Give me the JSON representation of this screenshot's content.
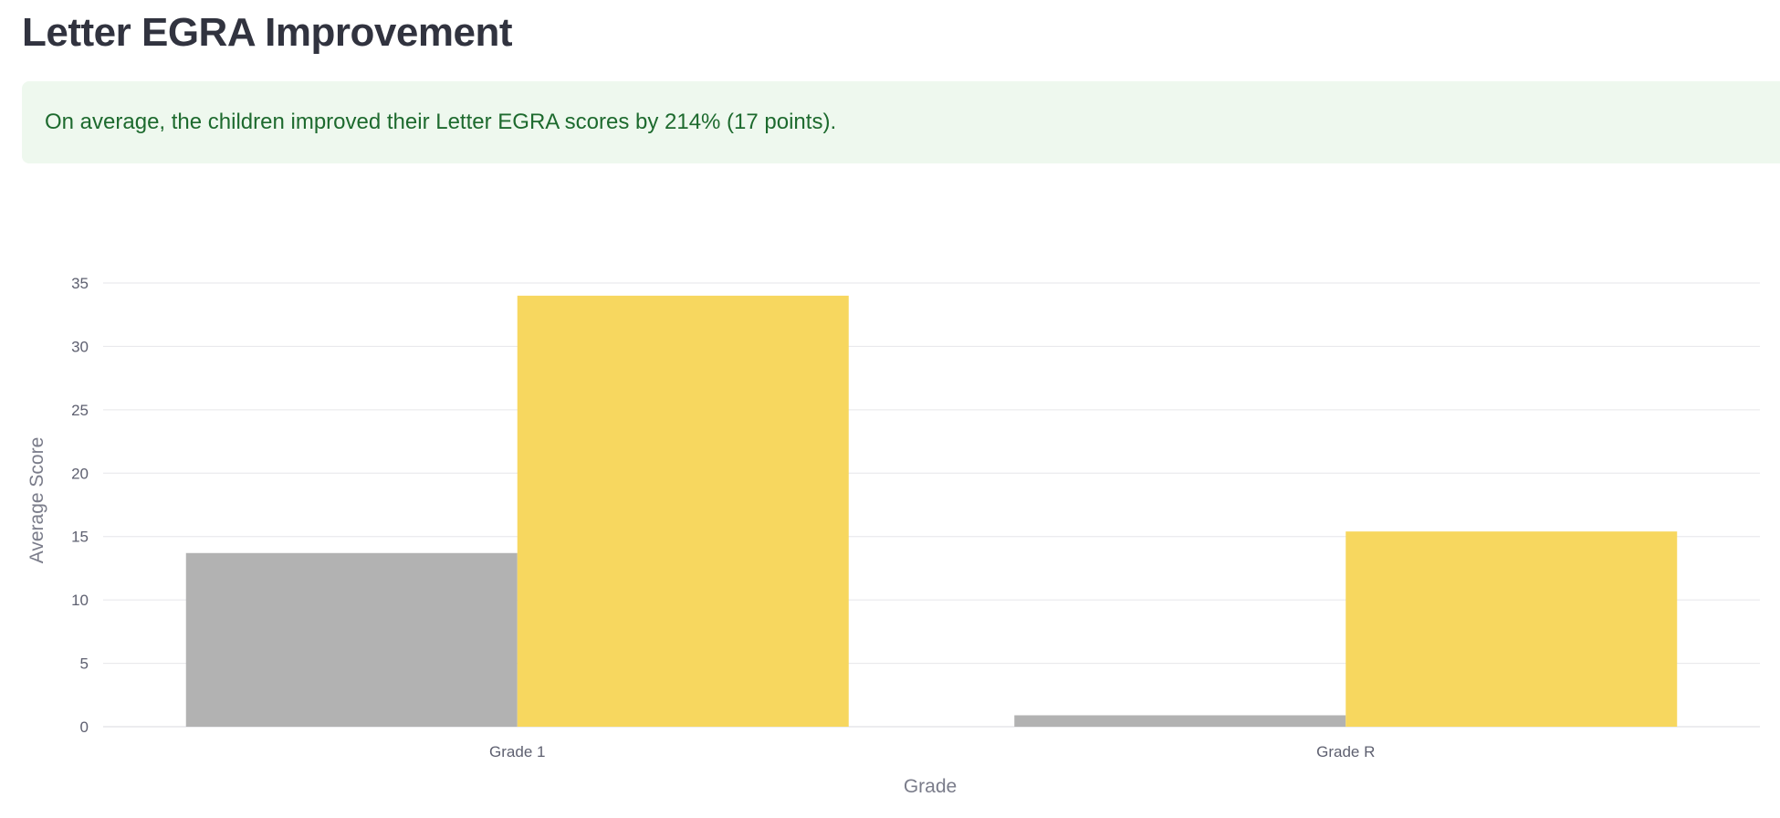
{
  "page": {
    "title": "Letter EGRA Improvement",
    "summary": "On average, the children improved their Letter EGRA scores by 214% (17 points)."
  },
  "colors": {
    "series_before": "#b2b2b2",
    "series_after": "#f7d75f",
    "gridline": "#e6e6ea",
    "alert_bg": "#eef8ee",
    "alert_text": "#1d6a2e"
  },
  "chart_data": {
    "type": "bar",
    "categories": [
      "Grade 1",
      "Grade R"
    ],
    "series": [
      {
        "values": [
          13.7,
          0.9
        ]
      },
      {
        "values": [
          34.0,
          15.4
        ]
      }
    ],
    "xlabel": "Grade",
    "ylabel": "Average Score",
    "ylim": [
      0,
      35
    ],
    "yticks": [
      0,
      5,
      10,
      15,
      20,
      25,
      30,
      35
    ],
    "grid": true
  }
}
